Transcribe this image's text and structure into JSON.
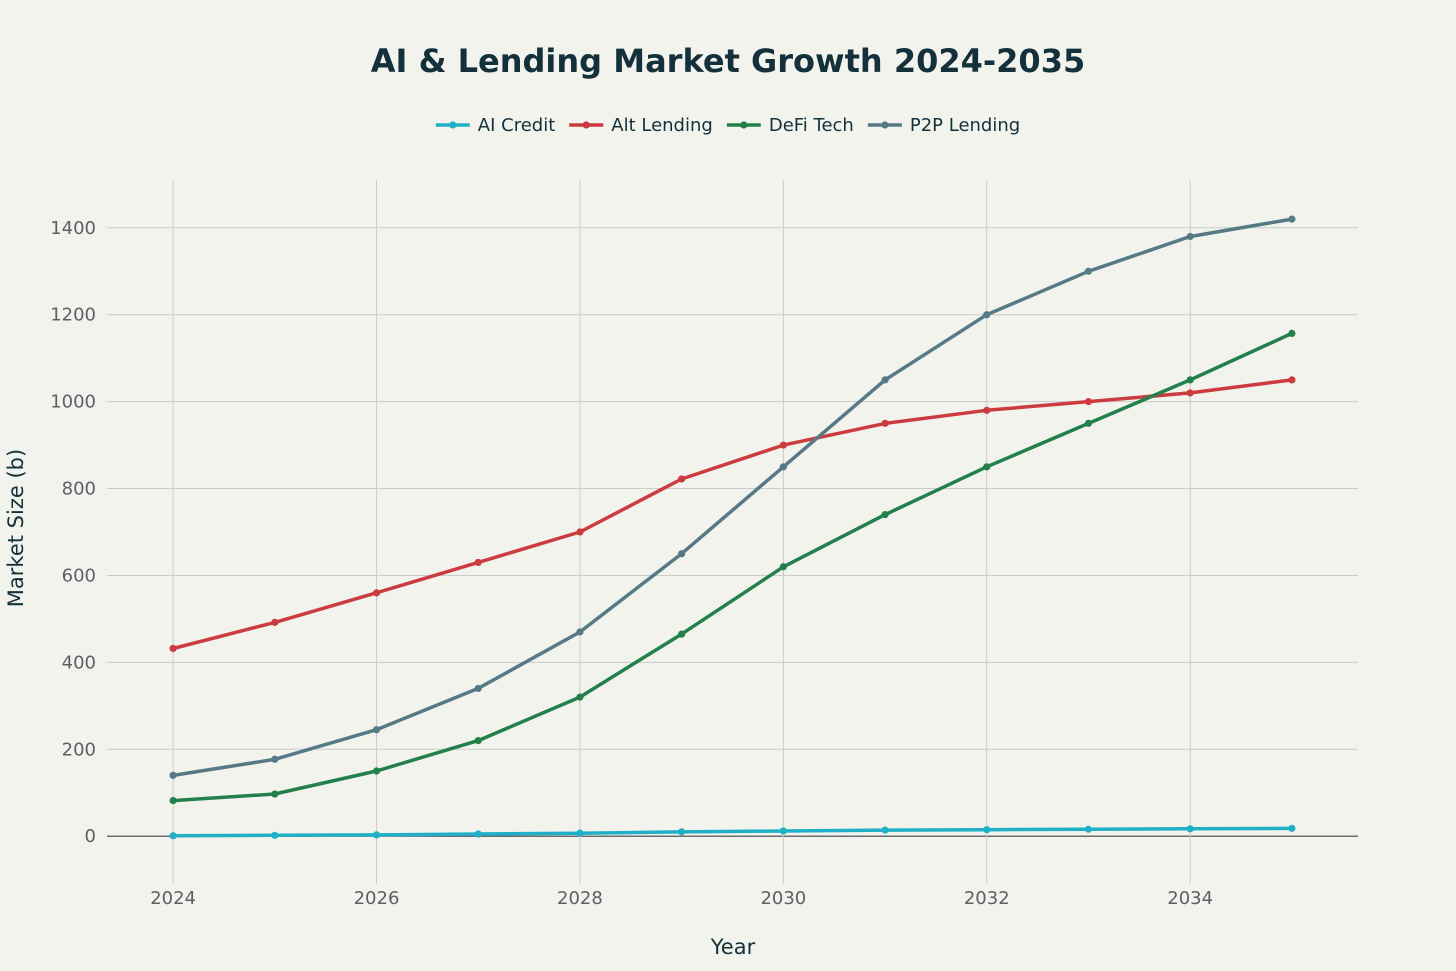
{
  "chart_data": {
    "type": "line",
    "title": "AI & Lending Market Growth 2024-2035",
    "xlabel": "Year",
    "ylabel": "Market Size (b)",
    "x": [
      2024,
      2025,
      2026,
      2027,
      2028,
      2029,
      2030,
      2031,
      2032,
      2033,
      2034,
      2035
    ],
    "x_ticks": [
      "2024",
      "2026",
      "2028",
      "2030",
      "2032",
      "2034"
    ],
    "y_ticks": [
      "0",
      "200",
      "400",
      "600",
      "800",
      "1000",
      "1200",
      "1400"
    ],
    "xlim": [
      2023.35,
      2035.65
    ],
    "ylim": [
      -110,
      1510
    ],
    "grid": true,
    "legend_position": "top-center",
    "series": [
      {
        "name": "AI Credit",
        "color": "#1fb0c8",
        "values": [
          1,
          2,
          3,
          5,
          7,
          10,
          12,
          14,
          15,
          16,
          17,
          18
        ]
      },
      {
        "name": "Alt Lending",
        "color": "#cc3b3f",
        "values": [
          432,
          492,
          560,
          630,
          700,
          822,
          900,
          950,
          980,
          1000,
          1020,
          1050
        ]
      },
      {
        "name": "DeFi Tech",
        "color": "#23804a",
        "values": [
          82,
          97,
          150,
          220,
          320,
          465,
          620,
          740,
          850,
          950,
          1050,
          1157
        ]
      },
      {
        "name": "P2P Lending",
        "color": "#557a86",
        "values": [
          140,
          177,
          245,
          340,
          470,
          650,
          850,
          1050,
          1200,
          1300,
          1380,
          1420
        ]
      }
    ]
  }
}
